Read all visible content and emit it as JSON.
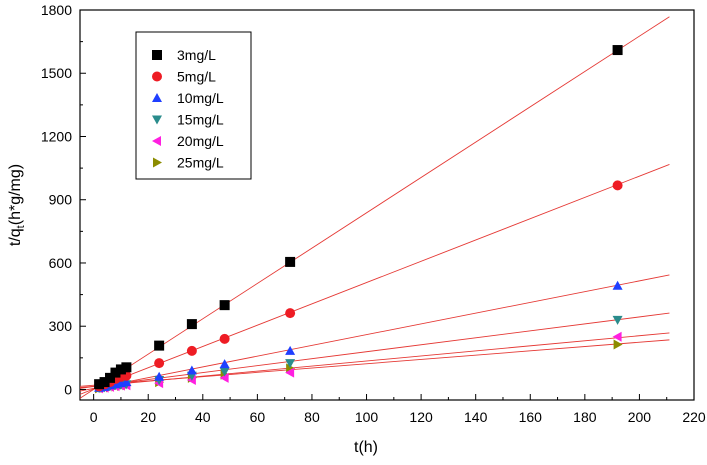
{
  "chart_data": {
    "type": "scatter",
    "title": "",
    "xlabel": "t(h)",
    "ylabel_main": "t/q",
    "ylabel_sub": "t",
    "ylabel_rest": "(h*g/mg)",
    "xlim": [
      -5,
      220
    ],
    "ylim": [
      -50,
      1800
    ],
    "xticks": [
      0,
      20,
      40,
      60,
      80,
      100,
      120,
      140,
      160,
      180,
      200,
      220
    ],
    "yticks": [
      0,
      300,
      600,
      900,
      1200,
      1500,
      1800
    ],
    "grid": false,
    "legend_position": "top-left",
    "fit_line_color": "#e53935",
    "series": [
      {
        "name": "3mg/L",
        "marker": "square",
        "color": "#000000",
        "x": [
          2,
          4,
          6,
          8,
          10,
          12,
          24,
          36,
          48,
          72,
          192
        ],
        "y": [
          25,
          35,
          55,
          80,
          95,
          105,
          208,
          310,
          400,
          605,
          1610
        ],
        "fit": {
          "slope": 8.38,
          "intercept": 0
        }
      },
      {
        "name": "5mg/L",
        "marker": "circle",
        "color": "#ee1c24",
        "x": [
          2,
          4,
          6,
          8,
          10,
          12,
          24,
          36,
          48,
          72,
          192
        ],
        "y": [
          15,
          25,
          35,
          50,
          60,
          65,
          125,
          183,
          240,
          362,
          968
        ],
        "fit": {
          "slope": 5.05,
          "intercept": 2
        }
      },
      {
        "name": "10mg/L",
        "marker": "triangle-up",
        "color": "#1f3fff",
        "x": [
          2,
          4,
          6,
          8,
          10,
          12,
          24,
          36,
          48,
          72,
          192
        ],
        "y": [
          8,
          12,
          20,
          25,
          30,
          35,
          60,
          90,
          120,
          183,
          492
        ],
        "fit": {
          "slope": 2.55,
          "intercept": 5
        }
      },
      {
        "name": "15mg/L",
        "marker": "triangle-down",
        "color": "#2a8c8c",
        "x": [
          2,
          4,
          6,
          8,
          10,
          12,
          24,
          36,
          48,
          72,
          192
        ],
        "y": [
          6,
          10,
          15,
          20,
          22,
          25,
          45,
          65,
          85,
          125,
          330
        ],
        "fit": {
          "slope": 1.65,
          "intercept": 14
        }
      },
      {
        "name": "20mg/L",
        "marker": "triangle-left",
        "color": "#ff1fe0",
        "x": [
          2,
          4,
          6,
          8,
          10,
          12,
          24,
          36,
          48,
          72,
          192
        ],
        "y": [
          5,
          8,
          12,
          15,
          18,
          20,
          30,
          45,
          55,
          80,
          250
        ],
        "fit": {
          "slope": 1.2,
          "intercept": 15
        }
      },
      {
        "name": "25mg/L",
        "marker": "triangle-right",
        "color": "#8c8c00",
        "x": [
          2,
          4,
          6,
          8,
          10,
          12,
          24,
          36,
          48,
          72,
          192
        ],
        "y": [
          5,
          7,
          10,
          14,
          17,
          20,
          35,
          55,
          70,
          100,
          213
        ],
        "fit": {
          "slope": 1.02,
          "intercept": 20
        }
      }
    ]
  }
}
